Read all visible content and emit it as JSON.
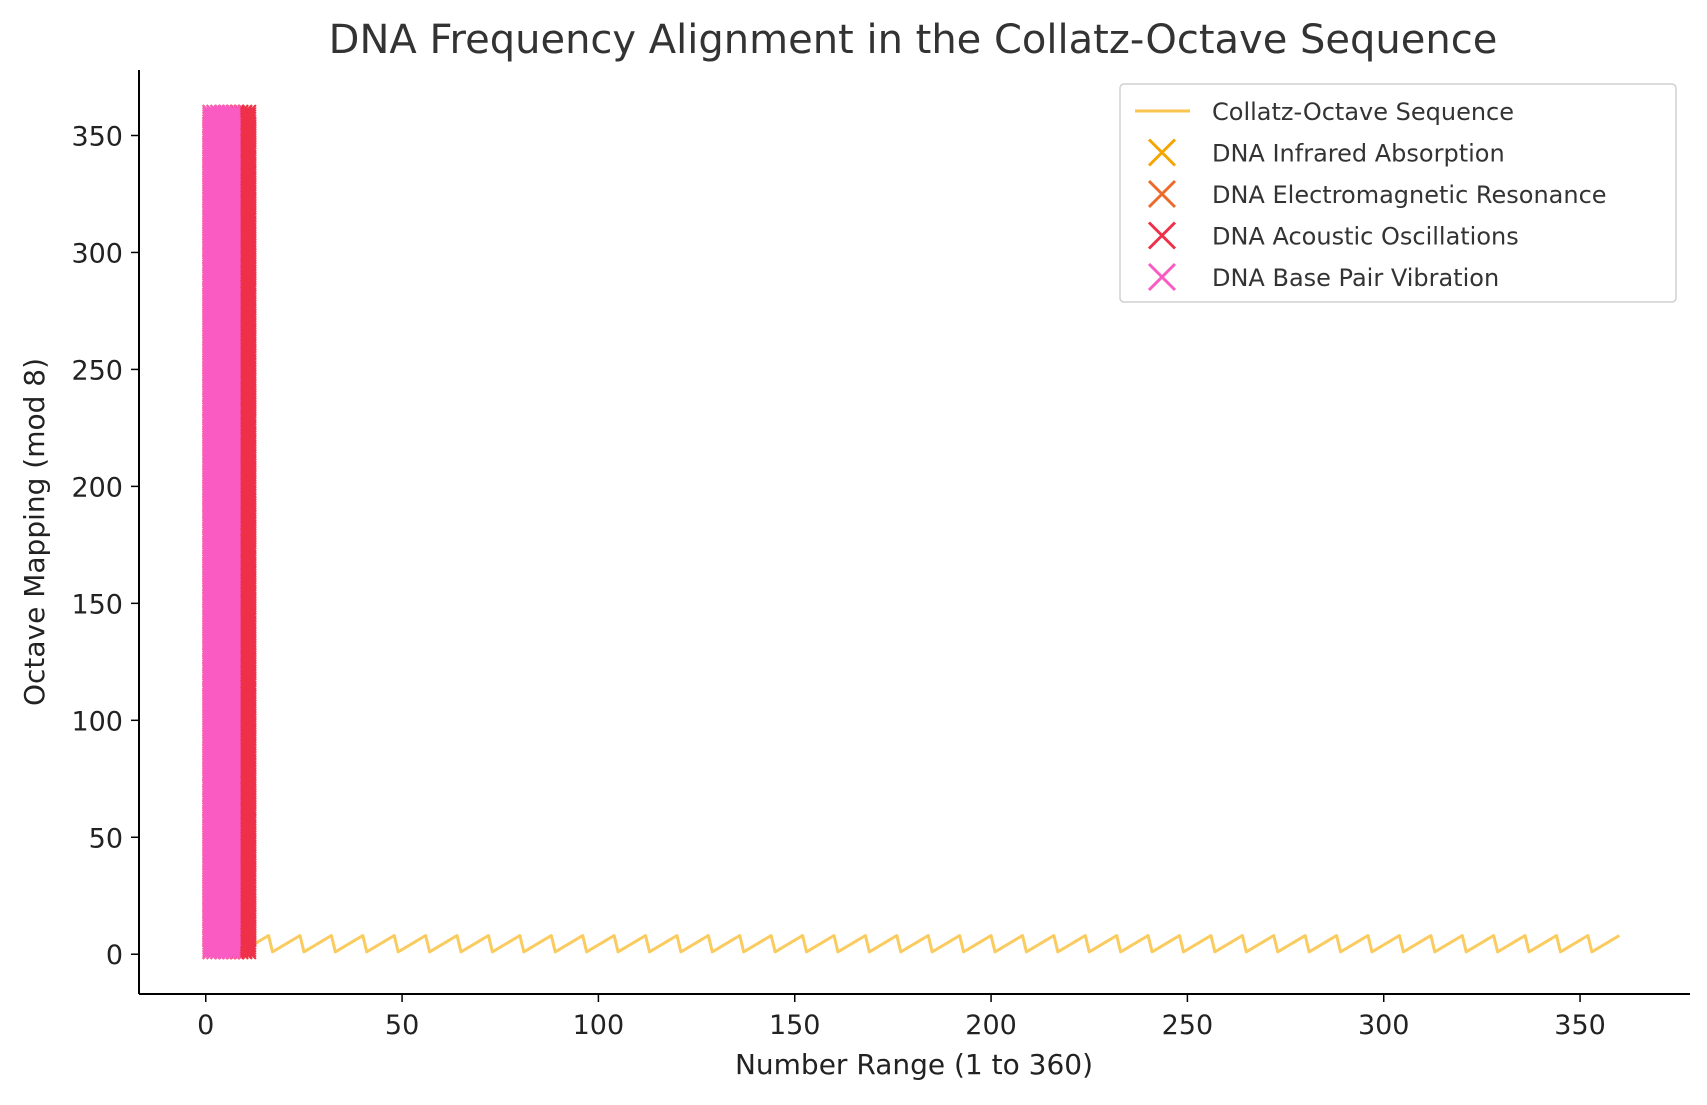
{
  "chart_data": {
    "type": "line",
    "title": "DNA Frequency Alignment in the Collatz-Octave Sequence",
    "xlabel": "Number Range (1 to 360)",
    "ylabel": "Octave Mapping (mod 8)",
    "xlim": [
      -17,
      378
    ],
    "ylim": [
      -17,
      378
    ],
    "xticks": [
      0,
      50,
      100,
      150,
      200,
      250,
      300,
      350
    ],
    "yticks": [
      0,
      50,
      100,
      150,
      200,
      250,
      300,
      350
    ],
    "grid": false,
    "legend_position": "top-right",
    "series": [
      {
        "name": "Collatz-Octave Sequence",
        "kind": "line",
        "color": "#f9c54e",
        "x_start": 1,
        "x_end": 360,
        "period": 8,
        "y_min": 1,
        "y_max": 8
      },
      {
        "name": "DNA Infrared Absorption",
        "kind": "x-markers",
        "color": "#f5a500",
        "x": [
          1,
          2,
          3,
          4,
          5,
          6,
          7,
          8
        ],
        "y_range": [
          1,
          360
        ]
      },
      {
        "name": "DNA Electromagnetic Resonance",
        "kind": "x-markers",
        "color": "#ee6a2a",
        "x": [
          2,
          3,
          4,
          5,
          6,
          7,
          8,
          9,
          10
        ],
        "y_range": [
          1,
          360
        ]
      },
      {
        "name": "DNA Acoustic Oscillations",
        "kind": "x-markers",
        "color": "#ee3048",
        "x": [
          8,
          9,
          10,
          11
        ],
        "y_range": [
          1,
          360
        ]
      },
      {
        "name": "DNA Base Pair Vibration",
        "kind": "x-markers",
        "color": "#f95bc3",
        "x": [
          1,
          2,
          3,
          4,
          5,
          6,
          7
        ],
        "y_range": [
          1,
          360
        ]
      }
    ]
  }
}
